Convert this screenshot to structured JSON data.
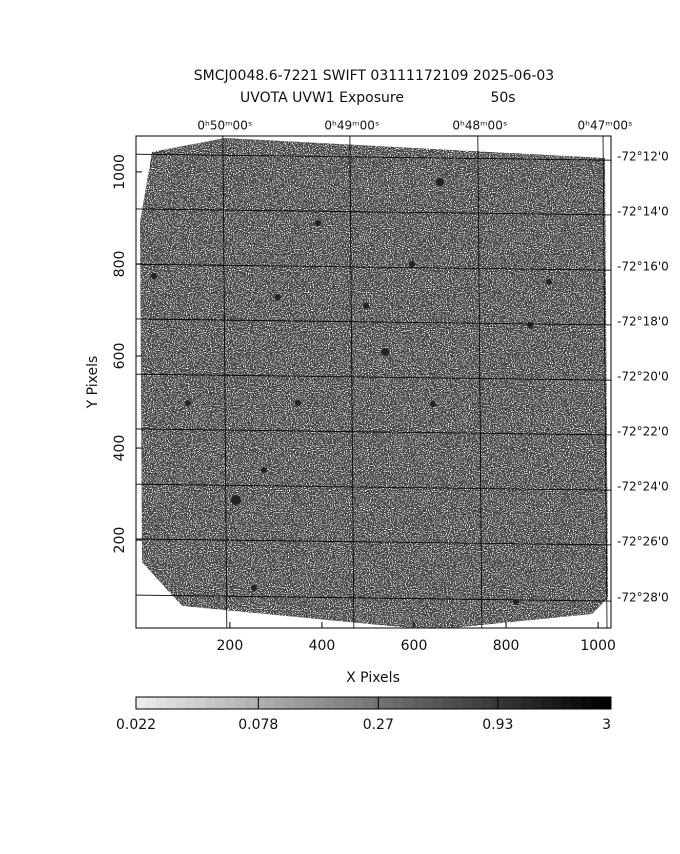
{
  "chart_data": {
    "type": "image",
    "title": "SMCJ0048.6-7221 SWIFT 03111172109 2025-06-03",
    "subtitle": "UVOTA UVW1 Exposure",
    "exposure": "50s",
    "x_label": "X Pixels",
    "y_label": "Y Pixels",
    "xlim": [
      -4,
      1028
    ],
    "ylim": [
      9,
      1078
    ],
    "xticks": [
      200,
      400,
      600,
      800,
      1000
    ],
    "yticks": [
      200,
      400,
      600,
      800,
      1000
    ],
    "x2ticks": [
      {
        "value": 189,
        "label": "0ʰ50ᵐ00ˢ"
      },
      {
        "value": 465,
        "label": "0ʰ49ᵐ00ˢ"
      },
      {
        "value": 743,
        "label": "0ʰ48ᵐ00ˢ"
      },
      {
        "value": 1015,
        "label": "0ʰ47ᵐ00ˢ"
      }
    ],
    "y2ticks": [
      {
        "value": 1032,
        "label": "-72°12'0"
      },
      {
        "value": 913,
        "label": "-72°14'0"
      },
      {
        "value": 793,
        "label": "-72°16'0"
      },
      {
        "value": 674,
        "label": "-72°18'0"
      },
      {
        "value": 554,
        "label": "-72°20'0"
      },
      {
        "value": 435,
        "label": "-72°22'0"
      },
      {
        "value": 315,
        "label": "-72°24'0"
      },
      {
        "value": 196,
        "label": "-72°26'0"
      },
      {
        "value": 74,
        "label": "-72°28'0"
      }
    ],
    "grid": true,
    "colorbar": {
      "clim": [
        0.022,
        3
      ],
      "log": true,
      "ticks": [
        0.022,
        0.078,
        0.27,
        0.93,
        3
      ]
    }
  }
}
